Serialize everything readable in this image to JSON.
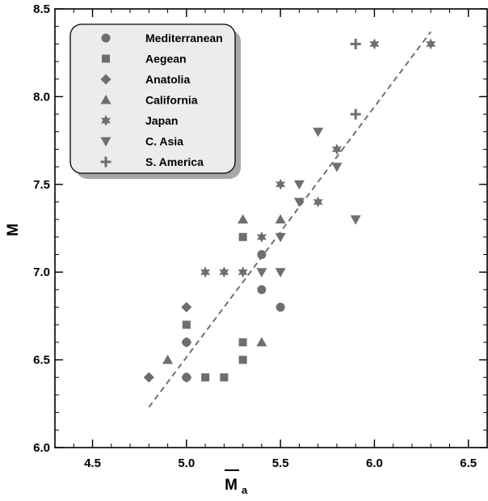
{
  "chart_data": {
    "type": "scatter",
    "title": "",
    "xlabel": "M",
    "xlabel_subscript": "a",
    "ylabel": "M",
    "xlim": [
      4.3,
      6.6
    ],
    "ylim": [
      6.0,
      8.5
    ],
    "xticks": [
      4.5,
      5.0,
      5.5,
      6.0,
      6.5
    ],
    "yticks": [
      6.0,
      6.5,
      7.0,
      7.5,
      8.0,
      8.5
    ],
    "xtick_labels": [
      "4.5",
      "5.0",
      "5.5",
      "6.0",
      "6.5"
    ],
    "ytick_labels": [
      "6.0",
      "6.5",
      "7.0",
      "7.5",
      "8.0",
      "8.5"
    ],
    "grid": false,
    "legend_position": "top-left",
    "marker_color": "#6e6e6e",
    "fit_line": {
      "x": [
        4.8,
        6.3
      ],
      "y": [
        6.23,
        8.37
      ],
      "style": "dashed",
      "color": "#707070"
    },
    "series": [
      {
        "name": "Mediterranean",
        "marker": "circle",
        "points": [
          [
            5.0,
            6.4
          ],
          [
            5.0,
            6.6
          ],
          [
            5.4,
            7.1
          ],
          [
            5.4,
            6.9
          ],
          [
            5.5,
            6.8
          ]
        ]
      },
      {
        "name": "Aegean",
        "marker": "square",
        "points": [
          [
            5.0,
            6.7
          ],
          [
            5.1,
            6.4
          ],
          [
            5.2,
            6.4
          ],
          [
            5.3,
            6.5
          ],
          [
            5.3,
            6.6
          ],
          [
            5.3,
            7.2
          ]
        ]
      },
      {
        "name": "Anatolia",
        "marker": "diamond",
        "points": [
          [
            4.8,
            6.4
          ],
          [
            5.0,
            6.8
          ],
          [
            5.0,
            6.6
          ],
          [
            5.0,
            6.4
          ]
        ]
      },
      {
        "name": "California",
        "marker": "triangle-up",
        "points": [
          [
            4.9,
            6.5
          ],
          [
            5.3,
            7.3
          ],
          [
            5.4,
            6.6
          ],
          [
            5.5,
            7.3
          ]
        ]
      },
      {
        "name": "Japan",
        "marker": "star",
        "points": [
          [
            5.1,
            7.0
          ],
          [
            5.2,
            7.0
          ],
          [
            5.3,
            7.0
          ],
          [
            5.4,
            7.2
          ],
          [
            5.5,
            7.5
          ],
          [
            5.7,
            7.4
          ],
          [
            5.8,
            7.7
          ],
          [
            6.0,
            8.3
          ],
          [
            6.3,
            8.3
          ]
        ]
      },
      {
        "name": "C. Asia",
        "marker": "triangle-down",
        "points": [
          [
            5.4,
            7.0
          ],
          [
            5.5,
            7.0
          ],
          [
            5.5,
            7.2
          ],
          [
            5.6,
            7.5
          ],
          [
            5.6,
            7.4
          ],
          [
            5.7,
            7.8
          ],
          [
            5.8,
            7.6
          ],
          [
            5.9,
            7.3
          ]
        ]
      },
      {
        "name": "S. America",
        "marker": "plus",
        "points": [
          [
            5.9,
            7.9
          ],
          [
            5.9,
            8.3
          ]
        ]
      }
    ]
  }
}
